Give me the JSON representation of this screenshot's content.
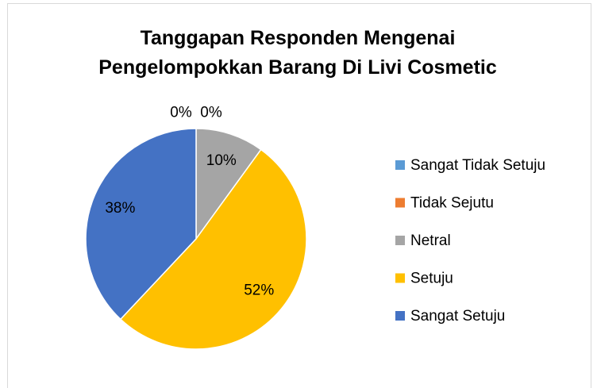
{
  "chart_data": {
    "type": "pie",
    "title": "Tanggapan Responden Mengenai Pengelompokkan Barang Di Livi Cosmetic",
    "categories": [
      "Sangat Tidak Setuju",
      "Tidak Sejutu",
      "Netral",
      "Setuju",
      "Sangat Setuju"
    ],
    "values": [
      0,
      0,
      10,
      52,
      38
    ],
    "value_labels": [
      "0%",
      "0%",
      "10%",
      "52%",
      "38%"
    ],
    "colors": [
      "#5b9bd5",
      "#ed7d31",
      "#a5a5a5",
      "#ffc000",
      "#4472c4"
    ],
    "legend": "right"
  }
}
